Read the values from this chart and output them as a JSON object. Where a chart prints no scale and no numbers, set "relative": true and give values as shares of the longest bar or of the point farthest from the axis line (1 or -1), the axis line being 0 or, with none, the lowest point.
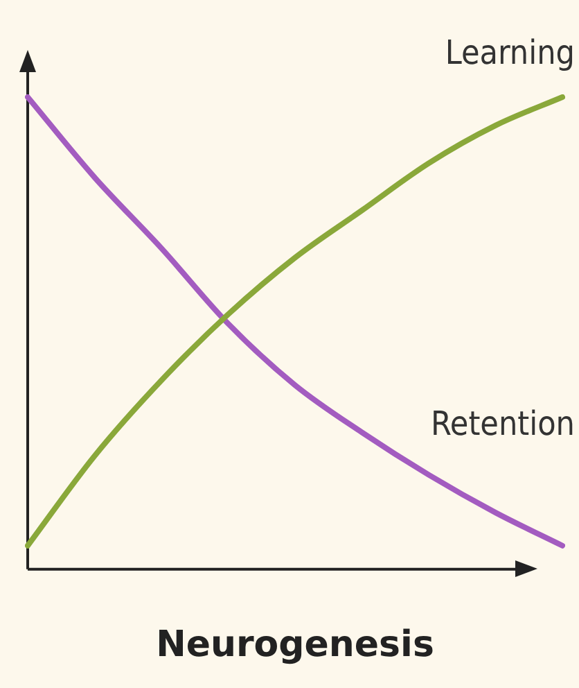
{
  "chart_data": {
    "type": "line",
    "xlabel": "Neurogenesis",
    "relative": true,
    "grid": false,
    "legend": false,
    "marker": "none",
    "line_style": "solid",
    "categories": [
      null,
      null,
      null,
      null,
      null,
      null,
      null,
      null,
      null
    ],
    "series": [
      {
        "name": "Learning",
        "color": "#8aa83a",
        "values": [
          0.05,
          0.24,
          0.4,
          0.54,
          0.66,
          0.76,
          0.86,
          0.94,
          1
        ]
      },
      {
        "name": "Retention",
        "color": "#a35cc0",
        "values": [
          1,
          0.83,
          0.68,
          0.52,
          0.39,
          0.29,
          0.2,
          0.12,
          0.05
        ]
      }
    ]
  }
}
